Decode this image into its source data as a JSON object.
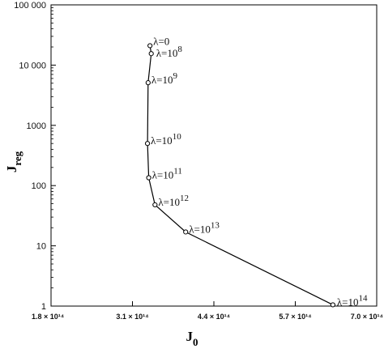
{
  "chart_data": {
    "type": "line",
    "xlabel_main": "J",
    "xlabel_sub": "0",
    "ylabel_main": "J",
    "ylabel_sub": "reg",
    "x_scale": "linear",
    "y_scale": "log",
    "xlim": [
      180000000000000.0,
      700000000000000.0
    ],
    "ylim": [
      1,
      100000
    ],
    "x_ticks": [
      180000000000000.0,
      310000000000000.0,
      440000000000000.0,
      570000000000000.0,
      700000000000000.0
    ],
    "x_tick_labels": [
      "1.8 × 10¹⁴",
      "3.1 × 10¹⁴",
      "4.4 × 10¹⁴",
      "5.7 × 10¹⁴",
      "7.0 × 10¹⁴"
    ],
    "y_ticks": [
      1,
      10,
      100,
      1000,
      10000,
      100000
    ],
    "y_tick_labels": [
      "1",
      "10",
      "100",
      "1000",
      "10 000",
      "100 000"
    ],
    "grid": false,
    "legend": "none",
    "line_color": "#000000",
    "points": [
      {
        "x": 338000000000000.0,
        "y": 21000,
        "label_base": "λ=0",
        "label_exp": ""
      },
      {
        "x": 340000000000000.0,
        "y": 15500,
        "label_base": "λ=10",
        "label_exp": "8"
      },
      {
        "x": 335000000000000.0,
        "y": 5100,
        "label_base": "λ=10",
        "label_exp": "9"
      },
      {
        "x": 334000000000000.0,
        "y": 500,
        "label_base": "λ=10",
        "label_exp": "10"
      },
      {
        "x": 336000000000000.0,
        "y": 135,
        "label_base": "λ=10",
        "label_exp": "11"
      },
      {
        "x": 346000000000000.0,
        "y": 48,
        "label_base": "λ=10",
        "label_exp": "12"
      },
      {
        "x": 395000000000000.0,
        "y": 17,
        "label_base": "λ=10",
        "label_exp": "13"
      },
      {
        "x": 630000000000000.0,
        "y": 1.05,
        "label_base": "λ=10",
        "label_exp": "14"
      }
    ]
  }
}
